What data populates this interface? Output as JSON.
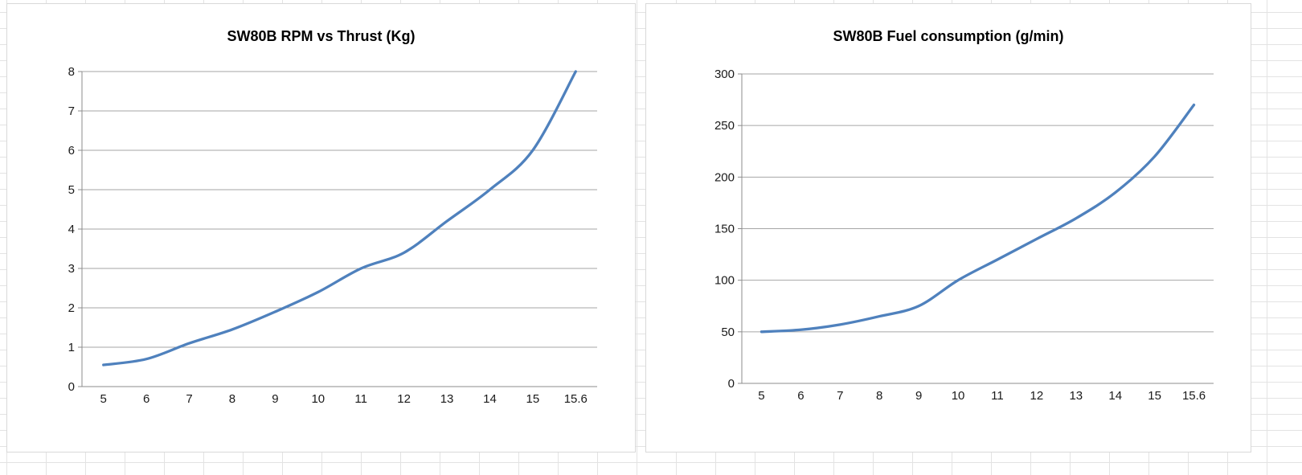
{
  "worksheet": {
    "cell_grid_color": "#e3e3e3",
    "background_color": "#ffffff",
    "chart_border_color": "#d9d9d9"
  },
  "chart_data": [
    {
      "type": "line",
      "title": "SW80B RPM vs Thrust (Kg)",
      "categories": [
        "5",
        "6",
        "7",
        "8",
        "9",
        "10",
        "11",
        "12",
        "13",
        "14",
        "15",
        "15.6"
      ],
      "values": [
        0.55,
        0.7,
        1.1,
        1.45,
        1.9,
        2.4,
        3.0,
        3.4,
        4.2,
        5.0,
        6.0,
        8.0
      ],
      "xlabel": "",
      "ylabel": "",
      "ylim": [
        0,
        8
      ],
      "ytick_step": 1,
      "grid": true,
      "legend": "none",
      "smooth": true,
      "line_color": "#4f81bd",
      "gridline_color": "#a6a6a6",
      "axis_color": "#8c8c8c",
      "label_color": "#1a1a1a"
    },
    {
      "type": "line",
      "title": "SW80B Fuel consumption (g/min)",
      "categories": [
        "5",
        "6",
        "7",
        "8",
        "9",
        "10",
        "11",
        "12",
        "13",
        "14",
        "15",
        "15.6"
      ],
      "values": [
        50,
        52,
        57,
        65,
        75,
        100,
        120,
        140,
        160,
        185,
        220,
        270
      ],
      "xlabel": "",
      "ylabel": "",
      "ylim": [
        0,
        300
      ],
      "ytick_step": 50,
      "grid": true,
      "legend": "none",
      "smooth": true,
      "line_color": "#4f81bd",
      "gridline_color": "#a6a6a6",
      "axis_color": "#8c8c8c",
      "label_color": "#1a1a1a"
    }
  ]
}
